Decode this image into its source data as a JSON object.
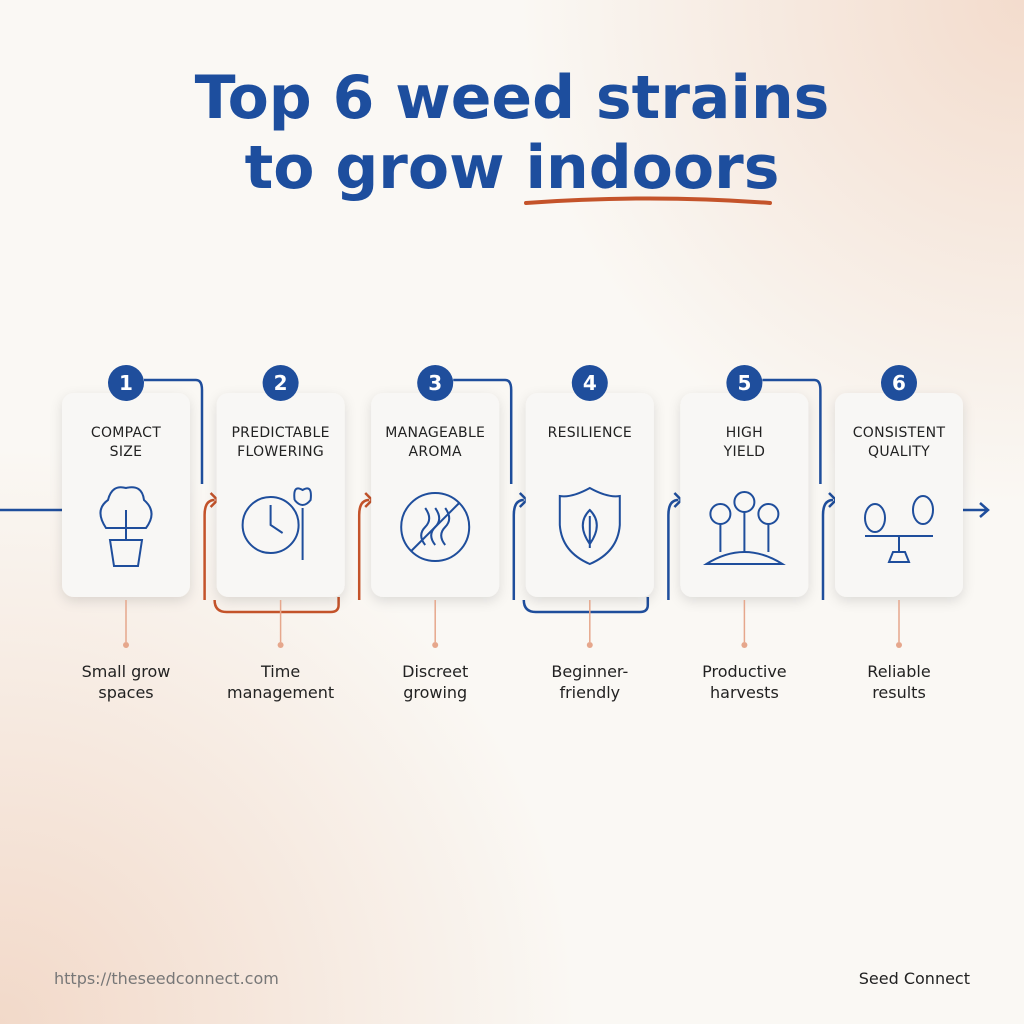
{
  "header": {
    "title_line1": "Top 6 weed strains",
    "title_line2_start": "to grow",
    "title_line2_highlight": "indoors"
  },
  "steps": [
    {
      "number": "1",
      "title": [
        "COMPACT",
        "SIZE"
      ],
      "benefit": [
        "Small grow",
        "spaces"
      ]
    },
    {
      "number": "2",
      "title": [
        "PREDICTABLE",
        "FLOWERING"
      ],
      "benefit": [
        "Time",
        "management"
      ]
    },
    {
      "number": "3",
      "title": [
        "MANAGEABLE",
        "AROMA"
      ],
      "benefit": [
        "Discreet",
        "growing"
      ]
    },
    {
      "number": "4",
      "title": [
        "RESILIENCE"
      ],
      "benefit": [
        "Beginner-",
        "friendly"
      ]
    },
    {
      "number": "5",
      "title": [
        "HIGH",
        "YIELD"
      ],
      "benefit": [
        "Productive",
        "harvests"
      ]
    },
    {
      "number": "6",
      "title": [
        "CONSISTENT",
        "QUALITY"
      ],
      "benefit": [
        "Reliable",
        "results"
      ]
    }
  ],
  "footer": {
    "url": "https://theseedconnect.com",
    "brand": "Seed Connect"
  }
}
